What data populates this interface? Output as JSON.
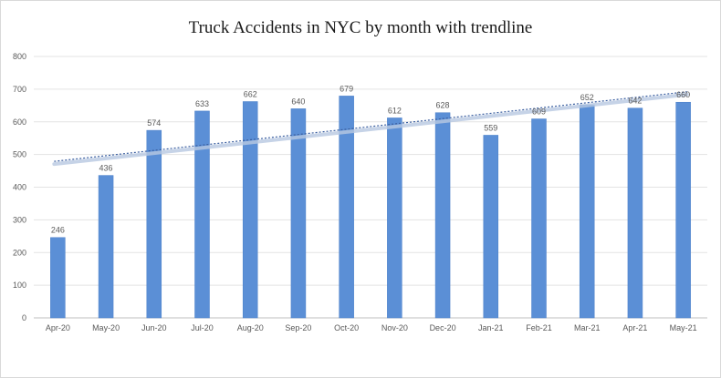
{
  "chart_data": {
    "type": "bar",
    "title": "Truck Accidents in NYC by month with trendline",
    "categories": [
      "Apr-20",
      "May-20",
      "Jun-20",
      "Jul-20",
      "Aug-20",
      "Sep-20",
      "Oct-20",
      "Nov-20",
      "Dec-20",
      "Jan-21",
      "Feb-21",
      "Mar-21",
      "Apr-21",
      "May-21"
    ],
    "values": [
      246,
      436,
      574,
      633,
      662,
      640,
      679,
      612,
      628,
      559,
      609,
      652,
      642,
      660
    ],
    "ylim": [
      0,
      800
    ],
    "yticks": [
      0,
      100,
      200,
      300,
      400,
      500,
      600,
      700,
      800
    ],
    "trendline": {
      "type": "linear",
      "start_value": 479,
      "end_value": 692
    },
    "grid": true,
    "colors": {
      "bar": "#5b8fd6",
      "bar_edge": "#4a7fc9",
      "trend": "#3b5fa0",
      "trend_shadow": "#b8c9e2",
      "grid": "#e3e3e3",
      "axis": "#bfbfbf"
    }
  }
}
